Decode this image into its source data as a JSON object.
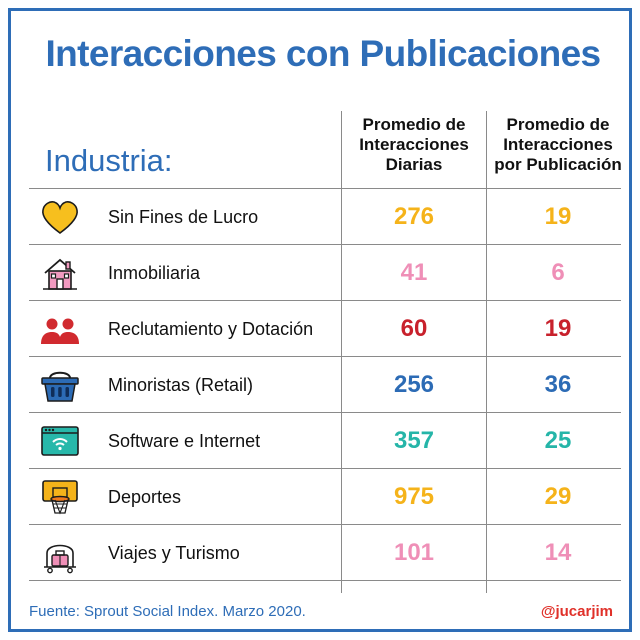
{
  "title": "Interacciones con Publicaciones",
  "industry_label": "Industria:",
  "columns": {
    "daily": [
      "Promedio de",
      "Interacciones",
      "Diarias"
    ],
    "per_post": [
      "Promedio de",
      "Interacciones",
      "por Publicación"
    ]
  },
  "footer": {
    "source": "Fuente: Sprout Social Index. Marzo 2020.",
    "handle": "@jucarjim"
  },
  "chart_data": {
    "type": "table",
    "title": "Interacciones con Publicaciones",
    "columns": [
      "Industria:",
      "Promedio de Interacciones Diarias",
      "Promedio de Interacciones por Publicación"
    ],
    "rows": [
      {
        "industry": "Sin Fines de Lucro",
        "daily": "276",
        "per_post": "19",
        "color": "#f5b31a",
        "icon": "heart-icon"
      },
      {
        "industry": "Inmobiliaria",
        "daily": "41",
        "per_post": "6",
        "color": "#ef8fb7",
        "icon": "house-icon"
      },
      {
        "industry": "Reclutamiento y Dotación",
        "daily": "60",
        "per_post": "19",
        "color": "#c8212c",
        "icon": "people-icon"
      },
      {
        "industry": "Minoristas (Retail)",
        "daily": "256",
        "per_post": "36",
        "color": "#2c6bb5",
        "icon": "basket-icon"
      },
      {
        "industry": "Software e Internet",
        "daily": "357",
        "per_post": "25",
        "color": "#25b5a8",
        "icon": "browser-wifi-icon"
      },
      {
        "industry": "Deportes",
        "daily": "975",
        "per_post": "29",
        "color": "#f5b31a",
        "icon": "basketball-hoop-icon"
      },
      {
        "industry": "Viajes y Turismo",
        "daily": "101",
        "per_post": "14",
        "color": "#ef8fb7",
        "icon": "luggage-cart-icon"
      }
    ]
  }
}
